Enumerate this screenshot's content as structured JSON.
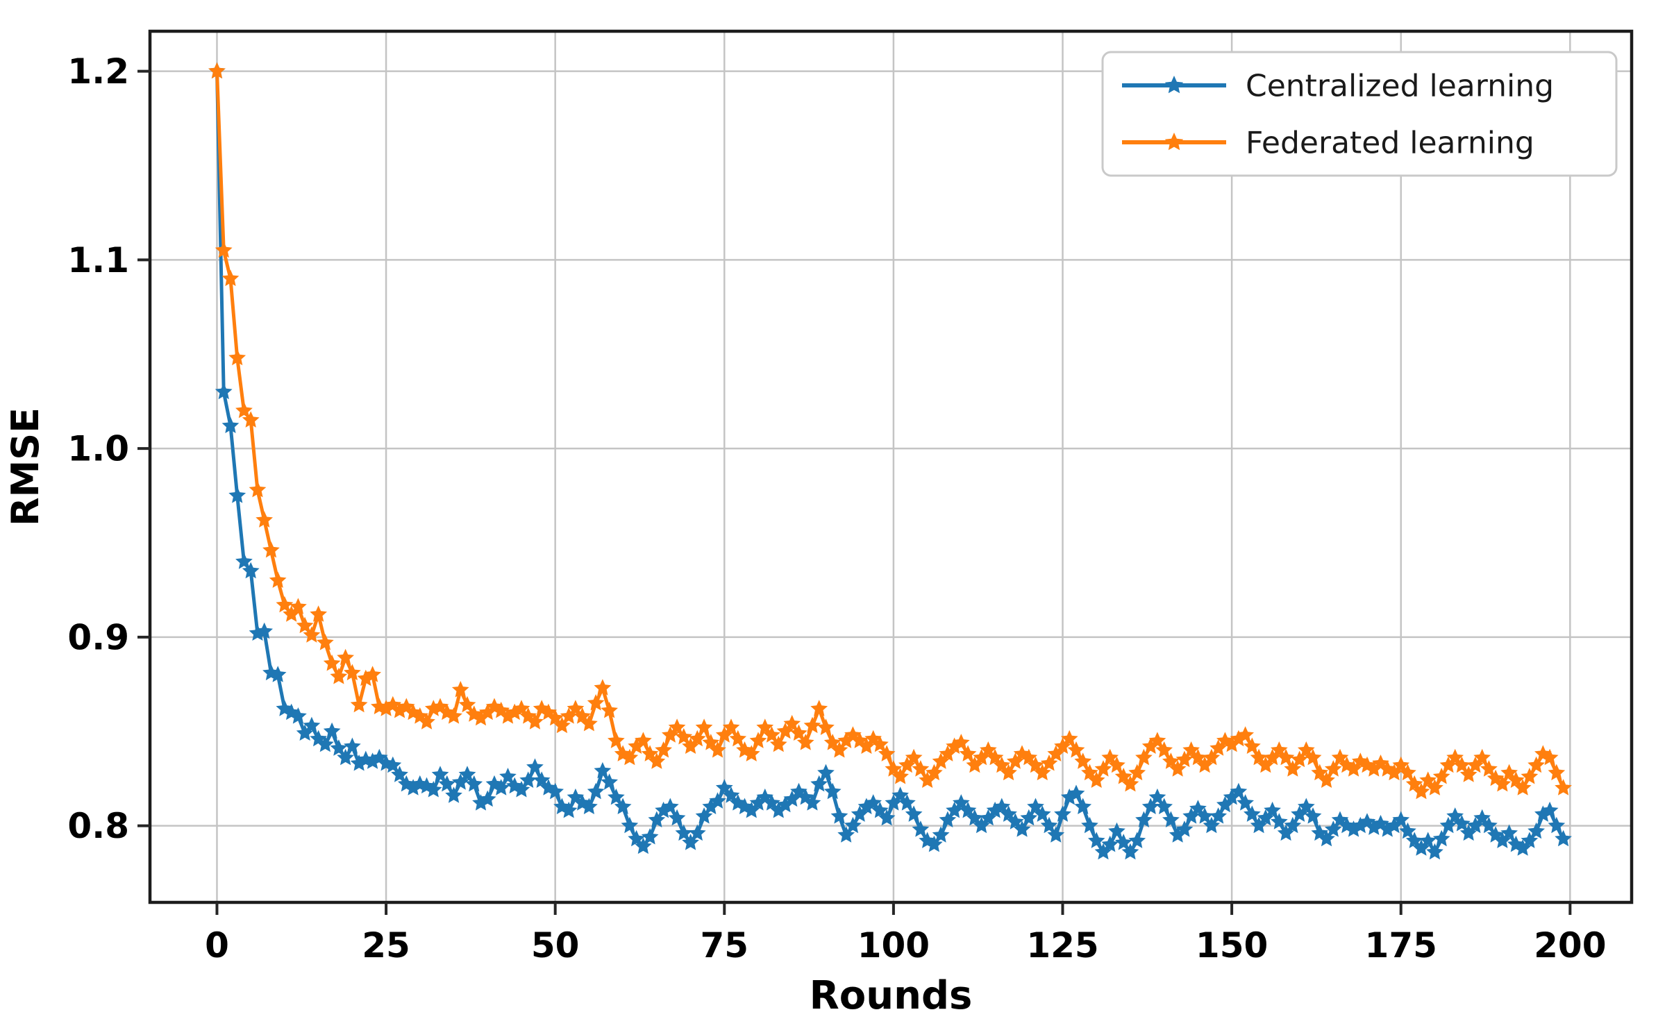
{
  "figure": {
    "background": "#ffffff"
  },
  "chart_data": {
    "type": "line",
    "title": "",
    "xlabel": "Rounds",
    "ylabel": "RMSE",
    "x_mode": "index: x value equals round number 0..199, step 1",
    "xlim": [
      -9.9,
      209.1
    ],
    "ylim": [
      0.7594,
      1.2212
    ],
    "xticks": [
      0,
      25,
      50,
      75,
      100,
      125,
      150,
      175,
      200
    ],
    "xtick_labels": [
      "0",
      "25",
      "50",
      "75",
      "100",
      "125",
      "150",
      "175",
      "200"
    ],
    "yticks": [
      0.8,
      0.9,
      1.0,
      1.1,
      1.2
    ],
    "ytick_labels": [
      "0.8",
      "0.9",
      "1.0",
      "1.1",
      "1.2"
    ],
    "grid": true,
    "grid_color": "#c4c4c4",
    "spine_color": "#1c1c1c",
    "tick_color": "#262626",
    "text_color": "#000000",
    "marker": "star",
    "legend": {
      "position": "upper right",
      "background": "#ffffff",
      "border_color": "#c9c9c9",
      "entries": [
        "Centralized learning",
        "Federated learning"
      ]
    },
    "series": [
      {
        "name": "Centralized learning",
        "color": "#1f77b4",
        "values": [
          1.2,
          1.03,
          1.012,
          0.975,
          0.94,
          0.935,
          0.902,
          0.903,
          0.881,
          0.88,
          0.862,
          0.86,
          0.858,
          0.849,
          0.853,
          0.846,
          0.843,
          0.85,
          0.841,
          0.836,
          0.842,
          0.833,
          0.835,
          0.834,
          0.836,
          0.833,
          0.832,
          0.827,
          0.822,
          0.82,
          0.822,
          0.821,
          0.819,
          0.827,
          0.822,
          0.816,
          0.823,
          0.827,
          0.822,
          0.812,
          0.814,
          0.822,
          0.82,
          0.826,
          0.821,
          0.819,
          0.824,
          0.831,
          0.824,
          0.82,
          0.818,
          0.81,
          0.808,
          0.815,
          0.812,
          0.81,
          0.818,
          0.829,
          0.823,
          0.815,
          0.81,
          0.8,
          0.793,
          0.789,
          0.794,
          0.803,
          0.808,
          0.81,
          0.804,
          0.796,
          0.791,
          0.796,
          0.805,
          0.81,
          0.813,
          0.82,
          0.816,
          0.812,
          0.81,
          0.808,
          0.812,
          0.815,
          0.812,
          0.808,
          0.811,
          0.814,
          0.818,
          0.815,
          0.812,
          0.822,
          0.828,
          0.818,
          0.805,
          0.795,
          0.8,
          0.806,
          0.81,
          0.812,
          0.808,
          0.804,
          0.812,
          0.816,
          0.812,
          0.806,
          0.798,
          0.792,
          0.79,
          0.795,
          0.803,
          0.808,
          0.812,
          0.808,
          0.804,
          0.8,
          0.804,
          0.808,
          0.81,
          0.806,
          0.802,
          0.798,
          0.804,
          0.81,
          0.806,
          0.8,
          0.795,
          0.806,
          0.815,
          0.817,
          0.81,
          0.8,
          0.792,
          0.786,
          0.79,
          0.797,
          0.791,
          0.786,
          0.792,
          0.803,
          0.81,
          0.815,
          0.81,
          0.803,
          0.795,
          0.798,
          0.805,
          0.809,
          0.805,
          0.8,
          0.805,
          0.811,
          0.815,
          0.818,
          0.812,
          0.806,
          0.8,
          0.804,
          0.808,
          0.802,
          0.796,
          0.8,
          0.806,
          0.81,
          0.805,
          0.796,
          0.793,
          0.798,
          0.803,
          0.8,
          0.798,
          0.8,
          0.802,
          0.799,
          0.801,
          0.798,
          0.8,
          0.803,
          0.797,
          0.792,
          0.788,
          0.792,
          0.786,
          0.793,
          0.8,
          0.805,
          0.801,
          0.796,
          0.8,
          0.804,
          0.8,
          0.795,
          0.792,
          0.796,
          0.79,
          0.788,
          0.792,
          0.797,
          0.806,
          0.808,
          0.8,
          0.793
        ]
      },
      {
        "name": "Federated learning",
        "color": "#ff7f0e",
        "values": [
          1.2,
          1.105,
          1.09,
          1.048,
          1.02,
          1.015,
          0.978,
          0.962,
          0.946,
          0.93,
          0.917,
          0.912,
          0.916,
          0.906,
          0.901,
          0.912,
          0.897,
          0.886,
          0.879,
          0.889,
          0.881,
          0.864,
          0.878,
          0.88,
          0.863,
          0.862,
          0.864,
          0.861,
          0.863,
          0.86,
          0.858,
          0.855,
          0.862,
          0.863,
          0.86,
          0.858,
          0.872,
          0.864,
          0.859,
          0.857,
          0.86,
          0.863,
          0.861,
          0.858,
          0.86,
          0.862,
          0.858,
          0.855,
          0.862,
          0.86,
          0.857,
          0.853,
          0.858,
          0.862,
          0.858,
          0.854,
          0.865,
          0.873,
          0.861,
          0.845,
          0.838,
          0.836,
          0.842,
          0.845,
          0.838,
          0.834,
          0.84,
          0.848,
          0.852,
          0.847,
          0.842,
          0.846,
          0.852,
          0.844,
          0.84,
          0.848,
          0.852,
          0.846,
          0.84,
          0.838,
          0.845,
          0.852,
          0.848,
          0.843,
          0.85,
          0.854,
          0.849,
          0.844,
          0.853,
          0.862,
          0.852,
          0.844,
          0.84,
          0.845,
          0.848,
          0.845,
          0.842,
          0.846,
          0.843,
          0.838,
          0.83,
          0.826,
          0.832,
          0.836,
          0.83,
          0.824,
          0.828,
          0.834,
          0.838,
          0.842,
          0.844,
          0.838,
          0.832,
          0.836,
          0.84,
          0.836,
          0.832,
          0.828,
          0.834,
          0.838,
          0.836,
          0.832,
          0.828,
          0.833,
          0.838,
          0.842,
          0.846,
          0.84,
          0.834,
          0.828,
          0.824,
          0.83,
          0.836,
          0.832,
          0.826,
          0.822,
          0.828,
          0.836,
          0.842,
          0.845,
          0.84,
          0.834,
          0.83,
          0.835,
          0.84,
          0.836,
          0.832,
          0.836,
          0.841,
          0.845,
          0.843,
          0.846,
          0.848,
          0.842,
          0.836,
          0.832,
          0.836,
          0.84,
          0.836,
          0.83,
          0.835,
          0.84,
          0.836,
          0.828,
          0.824,
          0.83,
          0.836,
          0.832,
          0.83,
          0.834,
          0.832,
          0.83,
          0.833,
          0.83,
          0.828,
          0.832,
          0.828,
          0.822,
          0.818,
          0.824,
          0.82,
          0.826,
          0.832,
          0.836,
          0.832,
          0.827,
          0.832,
          0.836,
          0.83,
          0.825,
          0.822,
          0.828,
          0.824,
          0.82,
          0.826,
          0.832,
          0.838,
          0.836,
          0.828,
          0.82
        ]
      }
    ]
  }
}
